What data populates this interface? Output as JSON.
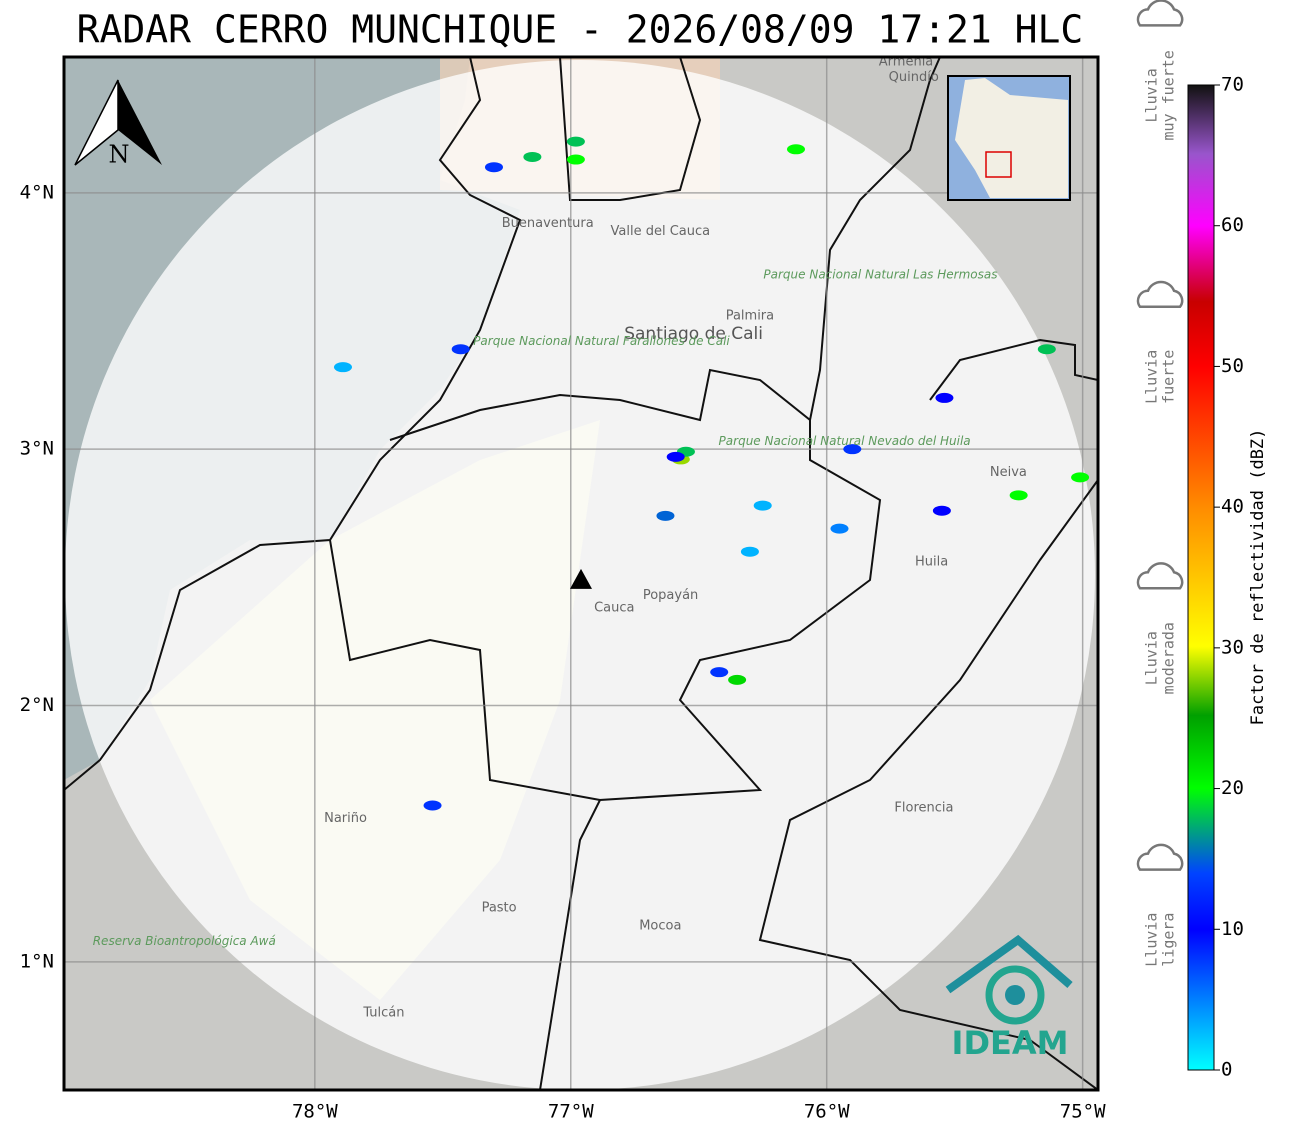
{
  "title": "RADAR CERRO MUNCHIQUE - 2026/08/09 17:21 HLC",
  "map": {
    "xlim": [
      -78.98,
      -74.94
    ],
    "ylim": [
      0.5,
      4.53
    ],
    "xticks": [
      {
        "value": -78,
        "label": "78°W"
      },
      {
        "value": -77,
        "label": "77°W"
      },
      {
        "value": -76,
        "label": "76°W"
      },
      {
        "value": -75,
        "label": "75°W"
      }
    ],
    "yticks": [
      {
        "value": 4,
        "label": "4°N"
      },
      {
        "value": 3,
        "label": "3°N"
      },
      {
        "value": 2,
        "label": "2°N"
      },
      {
        "value": 1,
        "label": "1°N"
      }
    ],
    "radar": {
      "lon": -76.96,
      "lat": 2.49
    },
    "echoes": [
      {
        "lon": -76.57,
        "lat": 2.96,
        "dbz": 28
      },
      {
        "lon": -76.55,
        "lat": 2.99,
        "dbz": 18
      },
      {
        "lon": -76.59,
        "lat": 2.97,
        "dbz": 10
      },
      {
        "lon": -76.63,
        "lat": 2.74,
        "dbz": 15
      },
      {
        "lon": -76.42,
        "lat": 2.13,
        "dbz": 8
      },
      {
        "lon": -76.35,
        "lat": 2.1,
        "dbz": 22
      },
      {
        "lon": -76.98,
        "lat": 4.13,
        "dbz": 20
      },
      {
        "lon": -76.98,
        "lat": 4.2,
        "dbz": 18
      },
      {
        "lon": -77.3,
        "lat": 4.1,
        "dbz": 8
      },
      {
        "lon": -77.15,
        "lat": 4.14,
        "dbz": 18
      },
      {
        "lon": -77.43,
        "lat": 3.39,
        "dbz": 8
      },
      {
        "lon": -75.01,
        "lat": 2.89,
        "dbz": 20
      },
      {
        "lon": -75.14,
        "lat": 3.39,
        "dbz": 18
      },
      {
        "lon": -75.54,
        "lat": 3.2,
        "dbz": 10
      },
      {
        "lon": -75.9,
        "lat": 3.0,
        "dbz": 8
      },
      {
        "lon": -75.55,
        "lat": 2.76,
        "dbz": 10
      },
      {
        "lon": -75.25,
        "lat": 2.82,
        "dbz": 20
      },
      {
        "lon": -75.95,
        "lat": 2.69,
        "dbz": 5
      },
      {
        "lon": -76.25,
        "lat": 2.78,
        "dbz": 3
      },
      {
        "lon": -76.3,
        "lat": 2.6,
        "dbz": 3
      },
      {
        "lon": -77.54,
        "lat": 1.61,
        "dbz": 8
      },
      {
        "lon": -76.12,
        "lat": 4.17,
        "dbz": 20
      },
      {
        "lon": -77.89,
        "lat": 3.32,
        "dbz": 3
      }
    ],
    "places": [
      {
        "name": "Buenaventura",
        "lon": -77.09,
        "lat": 3.88,
        "kind": "place"
      },
      {
        "name": "Valle del Cauca",
        "lon": -76.65,
        "lat": 3.85,
        "kind": "place"
      },
      {
        "name": "Palmira",
        "lon": -76.3,
        "lat": 3.52,
        "kind": "place"
      },
      {
        "name": "Santiago de Cali",
        "lon": -76.52,
        "lat": 3.45,
        "kind": "city"
      },
      {
        "name": "Popayán",
        "lon": -76.61,
        "lat": 2.43,
        "kind": "place"
      },
      {
        "name": "Cauca",
        "lon": -76.83,
        "lat": 2.38,
        "kind": "place"
      },
      {
        "name": "Neiva",
        "lon": -75.29,
        "lat": 2.91,
        "kind": "place"
      },
      {
        "name": "Huila",
        "lon": -75.59,
        "lat": 2.56,
        "kind": "place"
      },
      {
        "name": "Nariño",
        "lon": -77.88,
        "lat": 1.56,
        "kind": "place"
      },
      {
        "name": "Pasto",
        "lon": -77.28,
        "lat": 1.21,
        "kind": "place"
      },
      {
        "name": "Mocoa",
        "lon": -76.65,
        "lat": 1.14,
        "kind": "place"
      },
      {
        "name": "Florencia",
        "lon": -75.62,
        "lat": 1.6,
        "kind": "place"
      },
      {
        "name": "Tulcán",
        "lon": -77.73,
        "lat": 0.8,
        "kind": "place"
      },
      {
        "name": "Armenia",
        "lon": -75.69,
        "lat": 4.51,
        "kind": "place"
      },
      {
        "name": "Quindío",
        "lon": -75.66,
        "lat": 4.45,
        "kind": "place"
      },
      {
        "name": "Parque Nacional Natural Farallones de Cali",
        "lon": -76.88,
        "lat": 3.42,
        "kind": "park"
      },
      {
        "name": "Parque Nacional Natural Las Hermosas",
        "lon": -75.79,
        "lat": 3.68,
        "kind": "park"
      },
      {
        "name": "Parque Nacional Natural Nevado del Huila",
        "lon": -75.93,
        "lat": 3.03,
        "kind": "park"
      },
      {
        "name": "Reserva Bioantropológica Awá",
        "lon": -78.51,
        "lat": 1.08,
        "kind": "park"
      }
    ]
  },
  "colorbar": {
    "label": "Factor de reflectividad (dBZ)",
    "lim": [
      0,
      70
    ],
    "ticks": [
      0,
      10,
      20,
      30,
      40,
      50,
      60,
      70
    ]
  },
  "legend": [
    {
      "lines": [
        "Lluvia",
        "muy fuerte"
      ],
      "dbz": 65
    },
    {
      "lines": [
        "Lluvia",
        "fuerte"
      ],
      "dbz": 45
    },
    {
      "lines": [
        "Lluvia",
        "moderada"
      ],
      "dbz": 25
    },
    {
      "lines": [
        "Lluvia",
        "ligera"
      ],
      "dbz": 5
    }
  ],
  "north": "N",
  "logo": "IDEAM"
}
